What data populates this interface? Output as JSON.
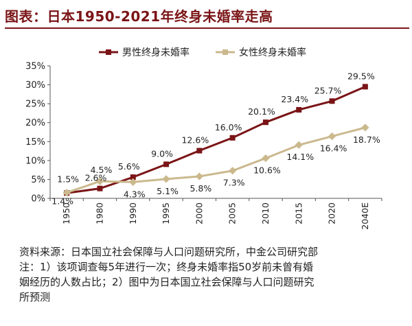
{
  "title": "图表：日本1950-2021年终身未婚率走高",
  "source": {
    "line1": "资料来源：日本国立社会保障与人口问题研究所，中金公司研究部",
    "line2": "注：1）该项调查每5年进行一次；终身未婚率指50岁前未曾有婚",
    "line3": "姻经历的人数占比；2）图中为日本国立社会保障与人口问题研究",
    "line4": "所预测"
  },
  "chart_data": {
    "type": "line",
    "categories": [
      "1950",
      "1980",
      "1990",
      "1995",
      "2000",
      "2005",
      "2010",
      "2015",
      "2020",
      "2040E"
    ],
    "series": [
      {
        "name": "男性终身未婚率",
        "color": "#7a1416",
        "values": [
          1.4,
          2.6,
          5.6,
          9.0,
          12.6,
          16.0,
          20.1,
          23.4,
          25.7,
          29.5
        ],
        "labels": [
          "1.4%",
          "2.6%",
          "5.6%",
          "9.0%",
          "12.6%",
          "16.0%",
          "20.1%",
          "23.4%",
          "25.7%",
          "29.5%"
        ]
      },
      {
        "name": "女性终身未婚率",
        "color": "#cbb98e",
        "values": [
          1.5,
          4.5,
          4.3,
          5.1,
          5.8,
          7.3,
          10.6,
          14.1,
          16.4,
          18.7
        ],
        "labels": [
          "1.5%",
          "4.5%",
          "4.3%",
          "5.1%",
          "5.8%",
          "7.3%",
          "10.6%",
          "14.1%",
          "16.4%",
          "18.7%"
        ]
      }
    ],
    "y_ticks": [
      "0%",
      "5%",
      "10%",
      "15%",
      "20%",
      "25%",
      "30%",
      "35%"
    ],
    "ylim": [
      0,
      35
    ],
    "grid": false,
    "legend": "top-center"
  }
}
